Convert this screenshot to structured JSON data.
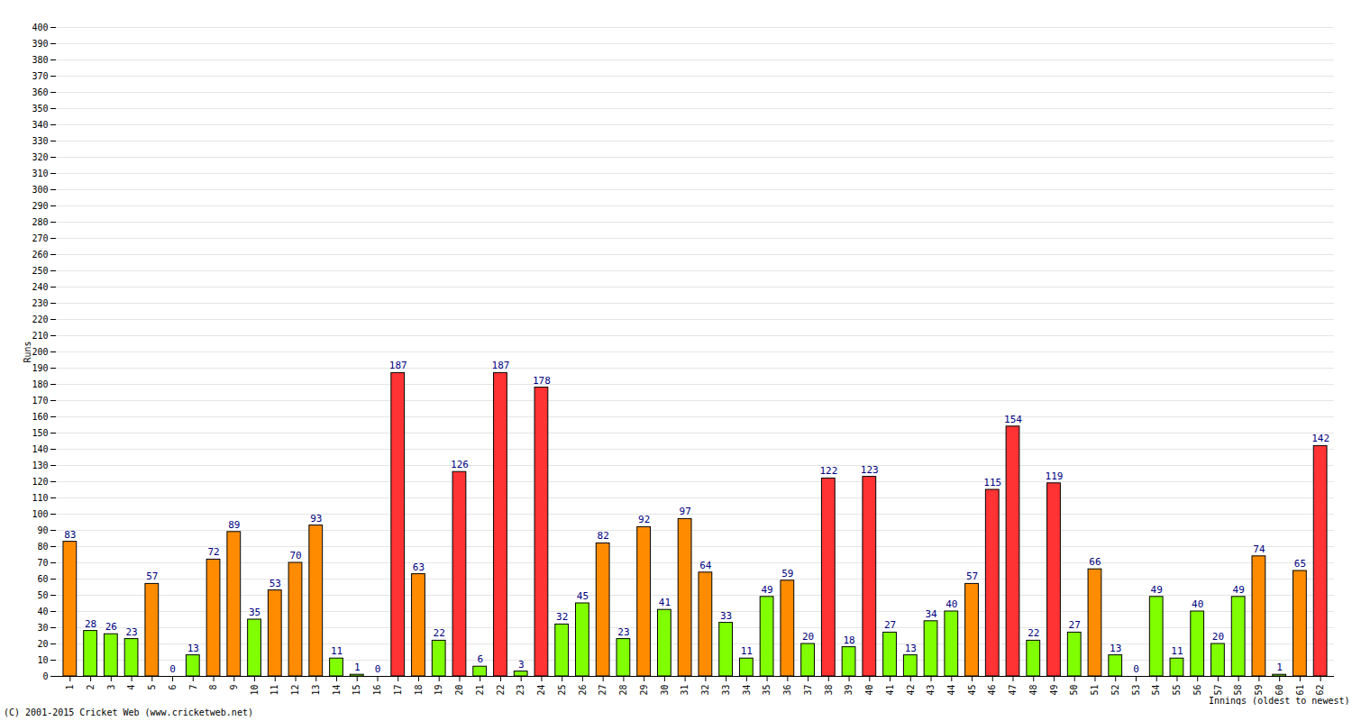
{
  "chart_data": {
    "type": "bar",
    "x_label": "Innings (oldest to newest)",
    "y_label": "Runs",
    "annotations": [
      "(C) 2001-2015 Cricket Web (www.cricketweb.net)"
    ],
    "categories": [
      1,
      2,
      3,
      4,
      5,
      6,
      7,
      8,
      9,
      10,
      11,
      12,
      13,
      14,
      15,
      16,
      17,
      18,
      19,
      20,
      21,
      22,
      23,
      24,
      25,
      26,
      27,
      28,
      29,
      30,
      31,
      32,
      33,
      34,
      35,
      36,
      37,
      38,
      39,
      40,
      41,
      42,
      43,
      44,
      45,
      46,
      47,
      48,
      49,
      50,
      51,
      52,
      53,
      54,
      55,
      56,
      57,
      58,
      59,
      60,
      61,
      62
    ],
    "values": [
      83,
      28,
      26,
      23,
      57,
      0,
      13,
      72,
      89,
      35,
      53,
      70,
      93,
      11,
      1,
      0,
      187,
      63,
      22,
      126,
      6,
      187,
      3,
      178,
      32,
      45,
      82,
      23,
      92,
      41,
      97,
      64,
      33,
      11,
      49,
      59,
      20,
      122,
      18,
      123,
      27,
      13,
      34,
      40,
      57,
      115,
      154,
      22,
      119,
      27,
      66,
      13,
      0,
      49,
      11,
      40,
      20,
      49,
      74,
      1,
      65,
      142
    ],
    "colors": [
      "#ff8c00",
      "#80ff00",
      "#80ff00",
      "#80ff00",
      "#ff8c00",
      "#80ff00",
      "#80ff00",
      "#ff8c00",
      "#ff8c00",
      "#80ff00",
      "#ff8c00",
      "#ff8c00",
      "#ff8c00",
      "#80ff00",
      "#80ff00",
      "#80ff00",
      "#ff3333",
      "#ff8c00",
      "#80ff00",
      "#ff3333",
      "#80ff00",
      "#ff3333",
      "#80ff00",
      "#ff3333",
      "#80ff00",
      "#80ff00",
      "#ff8c00",
      "#80ff00",
      "#ff8c00",
      "#80ff00",
      "#ff8c00",
      "#ff8c00",
      "#80ff00",
      "#80ff00",
      "#80ff00",
      "#ff8c00",
      "#80ff00",
      "#ff3333",
      "#80ff00",
      "#ff3333",
      "#80ff00",
      "#80ff00",
      "#80ff00",
      "#80ff00",
      "#ff8c00",
      "#ff3333",
      "#ff3333",
      "#80ff00",
      "#ff3333",
      "#80ff00",
      "#ff8c00",
      "#80ff00",
      "#80ff00",
      "#80ff00",
      "#80ff00",
      "#80ff00",
      "#80ff00",
      "#80ff00",
      "#ff8c00",
      "#80ff00",
      "#ff8c00",
      "#ff3333"
    ],
    "ylim": [
      0,
      400
    ],
    "yticks": [
      0,
      10,
      20,
      30,
      40,
      50,
      60,
      70,
      80,
      90,
      100,
      110,
      120,
      130,
      140,
      150,
      160,
      170,
      180,
      190,
      200,
      210,
      220,
      230,
      240,
      250,
      260,
      270,
      280,
      290,
      300,
      310,
      320,
      330,
      340,
      350,
      360,
      370,
      380,
      390,
      400
    ],
    "grid": true,
    "data_labels": true
  }
}
